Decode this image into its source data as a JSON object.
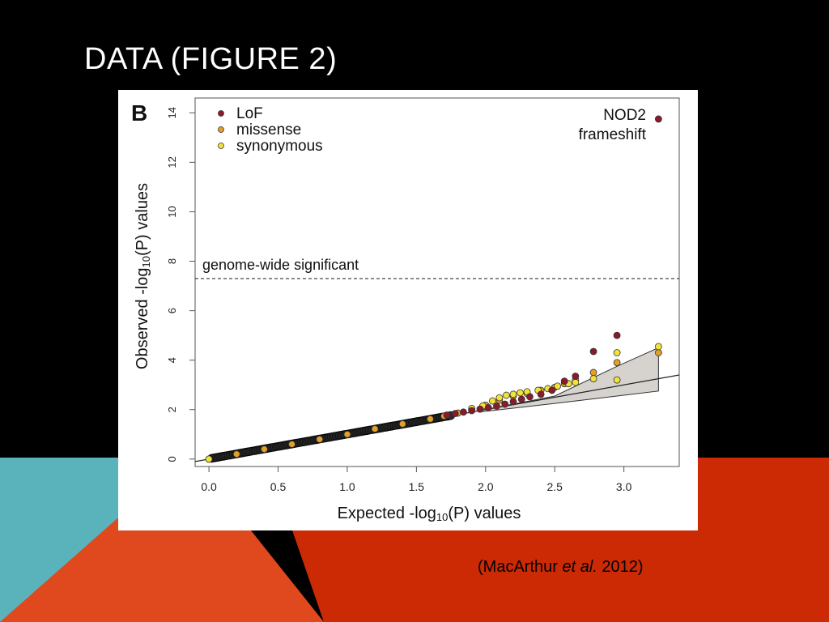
{
  "slide": {
    "title": "DATA (FIGURE 2)",
    "citation": {
      "prefix": "(MacArthur ",
      "italic": "et al.",
      "suffix": " 2012)"
    },
    "colors": {
      "background": "#000000",
      "teal": "#5ab3bb",
      "orange": "#e0491d",
      "red": "#cc2a05"
    }
  },
  "chart_data": {
    "type": "scatter",
    "panel_label": "B",
    "xlabel_prefix": "Expected -log",
    "xlabel_sub": "10",
    "xlabel_suffix": "(P) values",
    "ylabel_prefix": "Observed -log",
    "ylabel_sub": "10",
    "ylabel_suffix": "(P) values",
    "xlim": [
      -0.1,
      3.4
    ],
    "ylim": [
      -0.3,
      14.6
    ],
    "xticks": [
      0.0,
      0.5,
      1.0,
      1.5,
      2.0,
      2.5,
      3.0
    ],
    "xtick_labels": [
      "0.0",
      "0.5",
      "1.0",
      "1.5",
      "2.0",
      "2.5",
      "3.0"
    ],
    "yticks": [
      0,
      2,
      4,
      6,
      8,
      10,
      12,
      14
    ],
    "ytick_labels": [
      "0",
      "2",
      "4",
      "6",
      "8",
      "10",
      "12",
      "14"
    ],
    "legend_position": "top-left",
    "grid": false,
    "significance_line": {
      "y": 7.3,
      "label": "genome-wide significant"
    },
    "annotation": {
      "lines": [
        "NOD2",
        "frameshift"
      ],
      "x": 3.25,
      "y": 14.0
    },
    "identity_line": true,
    "confidence_band": [
      [
        1.95,
        1.95
      ],
      [
        2.5,
        2.55
      ],
      [
        2.95,
        3.75
      ],
      [
        3.25,
        4.5
      ],
      [
        3.25,
        2.75
      ],
      [
        2.95,
        2.55
      ],
      [
        2.5,
        2.25
      ],
      [
        1.95,
        1.9
      ]
    ],
    "series": [
      {
        "name": "LoF",
        "color": "#8b1a2b",
        "points": [
          [
            1.72,
            1.78
          ],
          [
            1.78,
            1.84
          ],
          [
            1.84,
            1.9
          ],
          [
            1.9,
            1.96
          ],
          [
            1.96,
            2.02
          ],
          [
            2.02,
            2.08
          ],
          [
            2.08,
            2.14
          ],
          [
            2.14,
            2.22
          ],
          [
            2.2,
            2.32
          ],
          [
            2.26,
            2.42
          ],
          [
            2.32,
            2.52
          ],
          [
            2.4,
            2.62
          ],
          [
            2.48,
            2.78
          ],
          [
            2.57,
            3.15
          ],
          [
            2.65,
            3.35
          ],
          [
            2.78,
            4.35
          ],
          [
            2.95,
            5.0
          ],
          [
            3.25,
            13.75
          ]
        ]
      },
      {
        "name": "missense",
        "color": "#e0a02a",
        "points": [
          [
            0.0,
            0.0
          ],
          [
            0.2,
            0.2
          ],
          [
            0.4,
            0.4
          ],
          [
            0.6,
            0.6
          ],
          [
            0.8,
            0.8
          ],
          [
            1.0,
            1.0
          ],
          [
            1.2,
            1.22
          ],
          [
            1.4,
            1.42
          ],
          [
            1.6,
            1.62
          ],
          [
            1.7,
            1.74
          ],
          [
            1.8,
            1.86
          ],
          [
            1.9,
            2.0
          ],
          [
            2.0,
            2.18
          ],
          [
            2.1,
            2.38
          ],
          [
            2.2,
            2.55
          ],
          [
            2.3,
            2.65
          ],
          [
            2.4,
            2.78
          ],
          [
            2.5,
            2.9
          ],
          [
            2.57,
            3.05
          ],
          [
            2.65,
            3.2
          ],
          [
            2.78,
            3.5
          ],
          [
            2.95,
            3.9
          ],
          [
            3.25,
            4.3
          ]
        ]
      },
      {
        "name": "synonymous",
        "color": "#f2e23a",
        "points": [
          [
            0.0,
            0.0
          ],
          [
            1.9,
            2.05
          ],
          [
            1.98,
            2.15
          ],
          [
            2.05,
            2.35
          ],
          [
            2.1,
            2.48
          ],
          [
            2.15,
            2.58
          ],
          [
            2.2,
            2.62
          ],
          [
            2.25,
            2.68
          ],
          [
            2.3,
            2.72
          ],
          [
            2.38,
            2.78
          ],
          [
            2.45,
            2.85
          ],
          [
            2.52,
            2.95
          ],
          [
            2.6,
            3.05
          ],
          [
            2.65,
            3.1
          ],
          [
            2.78,
            3.25
          ],
          [
            2.95,
            3.2
          ],
          [
            2.95,
            4.3
          ],
          [
            3.25,
            4.55
          ]
        ]
      }
    ]
  }
}
